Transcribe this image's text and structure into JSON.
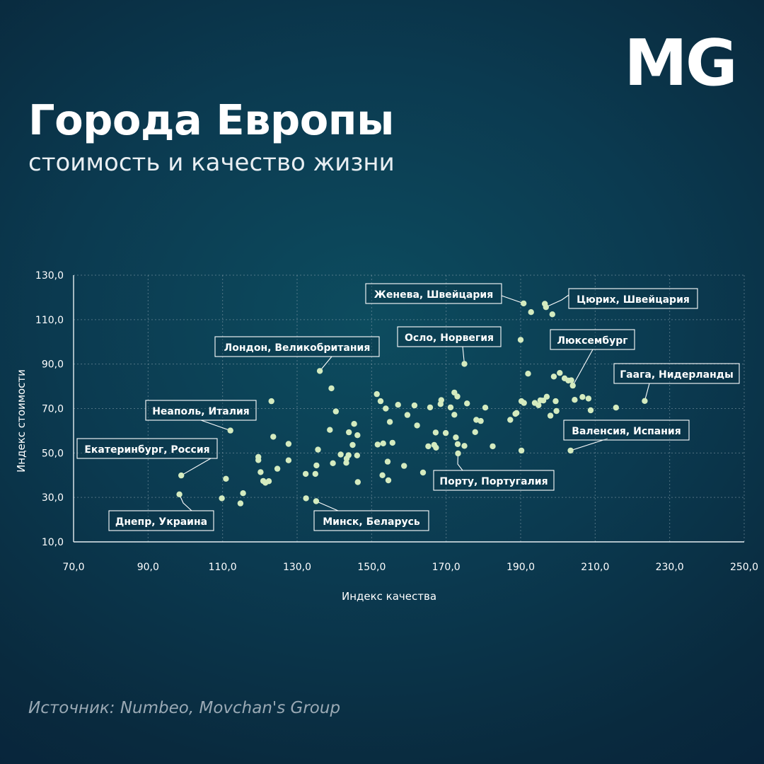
{
  "brand": {
    "logo_text": "MG"
  },
  "header": {
    "title": "Города Европы",
    "subtitle": "стоимость и качество жизни"
  },
  "footer": {
    "source": "Источник: Numbeo, Movchan's Group"
  },
  "colors": {
    "point": "#d4ebbf",
    "label_border": "#ffffff",
    "grid": "#8aa1ad",
    "axis": "#e6edf1"
  },
  "chart_data": {
    "type": "scatter",
    "title": "",
    "xlabel": "Индекс качества",
    "ylabel": "Индекс стоимости",
    "xlim": [
      70,
      250
    ],
    "ylim": [
      10,
      130
    ],
    "x_ticks": [
      70,
      90,
      110,
      130,
      150,
      170,
      190,
      210,
      230,
      250
    ],
    "y_ticks": [
      10,
      30,
      50,
      70,
      90,
      110,
      130
    ],
    "x_tick_labels": [
      "70,0",
      "90,0",
      "110,0",
      "130,0",
      "150,0",
      "170,0",
      "190,0",
      "210,0",
      "230,0",
      "250,0"
    ],
    "y_tick_labels": [
      "10,0",
      "30,0",
      "50,0",
      "70,0",
      "90,0",
      "110,0",
      "130,0"
    ],
    "grid": true,
    "points": [
      [
        98.4,
        31.4
      ],
      [
        98.9,
        39.9
      ],
      [
        109.8,
        29.6
      ],
      [
        110.9,
        38.4
      ],
      [
        112.1,
        60.1
      ],
      [
        114.8,
        27.3
      ],
      [
        115.5,
        31.9
      ],
      [
        119.6,
        48.2
      ],
      [
        119.6,
        46.8
      ],
      [
        120.2,
        41.4
      ],
      [
        120.9,
        37.4
      ],
      [
        121.5,
        36.6
      ],
      [
        122.4,
        37.3
      ],
      [
        123.1,
        73.3
      ],
      [
        123.6,
        57.3
      ],
      [
        124.7,
        42.9
      ],
      [
        127.7,
        46.7
      ],
      [
        127.7,
        54.1
      ],
      [
        132.3,
        40.6
      ],
      [
        132.4,
        29.6
      ],
      [
        134.9,
        40.6
      ],
      [
        135.1,
        28.3
      ],
      [
        135.2,
        44.4
      ],
      [
        135.6,
        51.5
      ],
      [
        136.1,
        86.9
      ],
      [
        138.8,
        60.4
      ],
      [
        139.2,
        79.1
      ],
      [
        139.6,
        45.4
      ],
      [
        140.4,
        68.7
      ],
      [
        141.7,
        49.3
      ],
      [
        143.2,
        45.6
      ],
      [
        143.3,
        47.5
      ],
      [
        143.8,
        49.0
      ],
      [
        143.9,
        59.3
      ],
      [
        144.9,
        53.6
      ],
      [
        145.3,
        63.1
      ],
      [
        146.1,
        48.9
      ],
      [
        146.2,
        58.0
      ],
      [
        146.3,
        36.9
      ],
      [
        151.4,
        76.5
      ],
      [
        151.6,
        53.8
      ],
      [
        152.4,
        73.3
      ],
      [
        152.9,
        40.0
      ],
      [
        153.1,
        54.3
      ],
      [
        153.8,
        70.0
      ],
      [
        154.3,
        46.1
      ],
      [
        154.5,
        37.7
      ],
      [
        154.9,
        64.0
      ],
      [
        155.6,
        54.6
      ],
      [
        157.1,
        71.7
      ],
      [
        158.7,
        44.2
      ],
      [
        159.6,
        67.1
      ],
      [
        161.5,
        71.4
      ],
      [
        162.2,
        62.4
      ],
      [
        163.8,
        41.2
      ],
      [
        165.2,
        53.0
      ],
      [
        165.7,
        70.5
      ],
      [
        166.8,
        53.6
      ],
      [
        167.2,
        59.2
      ],
      [
        167.3,
        52.4
      ],
      [
        168.5,
        72.0
      ],
      [
        168.7,
        73.8
      ],
      [
        169.9,
        59.0
      ],
      [
        171.2,
        70.5
      ],
      [
        172.2,
        77.2
      ],
      [
        172.2,
        67.2
      ],
      [
        172.6,
        57.0
      ],
      [
        173.0,
        75.4
      ],
      [
        173.1,
        54.0
      ],
      [
        173.2,
        49.8
      ],
      [
        174.9,
        53.2
      ],
      [
        174.9,
        90.1
      ],
      [
        175.6,
        72.3
      ],
      [
        177.8,
        59.4
      ],
      [
        178.1,
        64.9
      ],
      [
        179.3,
        64.4
      ],
      [
        180.5,
        70.4
      ],
      [
        182.5,
        53.0
      ],
      [
        187.2,
        64.9
      ],
      [
        188.6,
        67.6
      ],
      [
        188.9,
        68.0
      ],
      [
        190.0,
        100.9
      ],
      [
        190.2,
        51.1
      ],
      [
        190.2,
        73.3
      ],
      [
        190.8,
        117.3
      ],
      [
        190.9,
        72.5
      ],
      [
        192.0,
        85.7
      ],
      [
        192.8,
        113.4
      ],
      [
        193.8,
        72.5
      ],
      [
        194.8,
        71.5
      ],
      [
        195.3,
        73.7
      ],
      [
        196.1,
        73.6
      ],
      [
        196.5,
        117.1
      ],
      [
        196.8,
        115.6
      ],
      [
        197.0,
        75.3
      ],
      [
        198.0,
        66.8
      ],
      [
        198.5,
        112.4
      ],
      [
        198.9,
        84.4
      ],
      [
        199.4,
        73.3
      ],
      [
        199.6,
        68.9
      ],
      [
        200.5,
        86.0
      ],
      [
        201.8,
        83.6
      ],
      [
        202.8,
        82.6
      ],
      [
        203.4,
        51.1
      ],
      [
        203.6,
        82.7
      ],
      [
        204.0,
        80.3
      ],
      [
        204.5,
        73.9
      ],
      [
        206.6,
        75.2
      ],
      [
        208.2,
        74.5
      ],
      [
        208.8,
        69.2
      ],
      [
        215.6,
        70.4
      ],
      [
        223.3,
        73.4
      ]
    ],
    "annotations": [
      {
        "text": "Женева, Швейцария",
        "x": 190.8,
        "y": 117.3
      },
      {
        "text": "Цюрих, Швейцария",
        "x": 196.7,
        "y": 115.6
      },
      {
        "text": "Осло, Норвегия",
        "x": 174.9,
        "y": 90.1
      },
      {
        "text": "Лондон, Великобритания",
        "x": 136.1,
        "y": 86.9
      },
      {
        "text": "Люксембург",
        "x": 204.0,
        "y": 80.3
      },
      {
        "text": "Гаага, Нидерланды",
        "x": 223.3,
        "y": 73.4
      },
      {
        "text": "Неаполь, Италия",
        "x": 112.1,
        "y": 60.1
      },
      {
        "text": "Валенсия, Испания",
        "x": 203.4,
        "y": 51.1
      },
      {
        "text": "Екатеринбург, Россия",
        "x": 98.9,
        "y": 39.9
      },
      {
        "text": "Порту, Португалия",
        "x": 173.2,
        "y": 49.8
      },
      {
        "text": "Днепр, Украина",
        "x": 98.4,
        "y": 31.4
      },
      {
        "text": "Минск, Беларусь",
        "x": 135.1,
        "y": 28.3
      }
    ]
  }
}
